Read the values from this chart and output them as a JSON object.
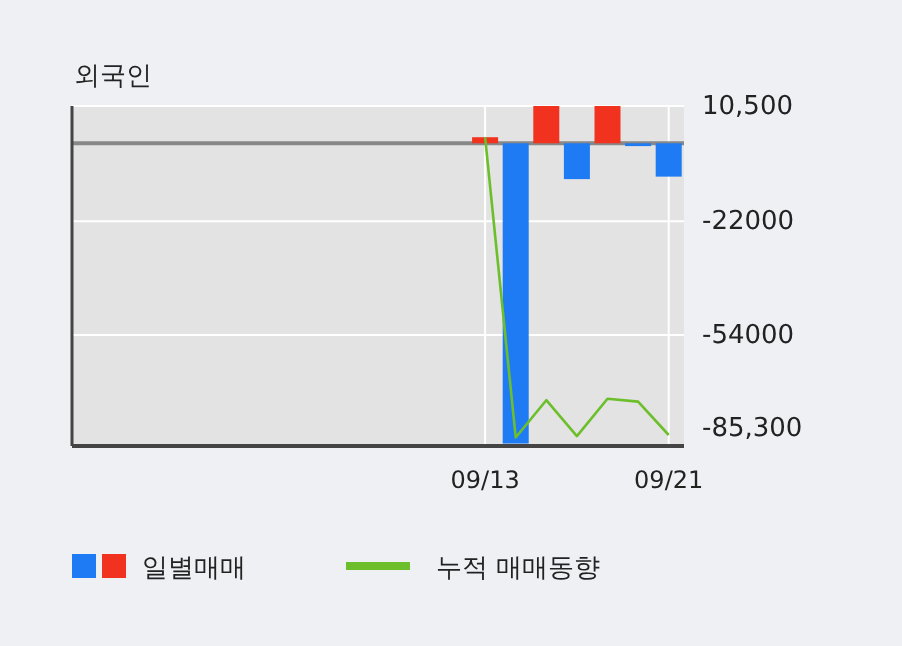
{
  "chart_data": {
    "type": "bar",
    "title": "외국인",
    "categories": [
      null,
      null,
      null,
      null,
      null,
      null,
      null,
      null,
      null,
      null,
      null,
      null,
      null,
      "09/13",
      null,
      null,
      null,
      null,
      null,
      "09/21"
    ],
    "series": [
      {
        "name": "일별매매",
        "colors": [
          null,
          null,
          null,
          null,
          null,
          null,
          null,
          null,
          null,
          null,
          null,
          null,
          null,
          "#f0321e",
          "#1f7bf4",
          "#f0321e",
          "#1f7bf4",
          "#f0321e",
          "#1f7bf4",
          "#1f7bf4"
        ],
        "values": [
          null,
          null,
          null,
          null,
          null,
          null,
          null,
          null,
          null,
          null,
          null,
          null,
          null,
          1700,
          -84600,
          10500,
          -10100,
          10500,
          -800,
          -9400
        ]
      },
      {
        "name": "누적 매매동향",
        "type": "line",
        "color": "#6cbf2a",
        "marker": "none",
        "values": [
          null,
          null,
          null,
          null,
          null,
          null,
          null,
          null,
          null,
          null,
          null,
          null,
          null,
          1700,
          -82900,
          -72400,
          -82500,
          -72000,
          -72800,
          -82200
        ]
      }
    ],
    "ylim": [
      -85300,
      10500
    ],
    "yticks": [
      {
        "value": 10500,
        "label": "10,500"
      },
      -22000,
      -54000,
      {
        "value": -85300,
        "label": "-85,300"
      }
    ],
    "ref_lines": [
      {
        "axis": "y",
        "value": 0,
        "color": "#888888"
      }
    ],
    "grid": true,
    "legend": "bottom"
  }
}
